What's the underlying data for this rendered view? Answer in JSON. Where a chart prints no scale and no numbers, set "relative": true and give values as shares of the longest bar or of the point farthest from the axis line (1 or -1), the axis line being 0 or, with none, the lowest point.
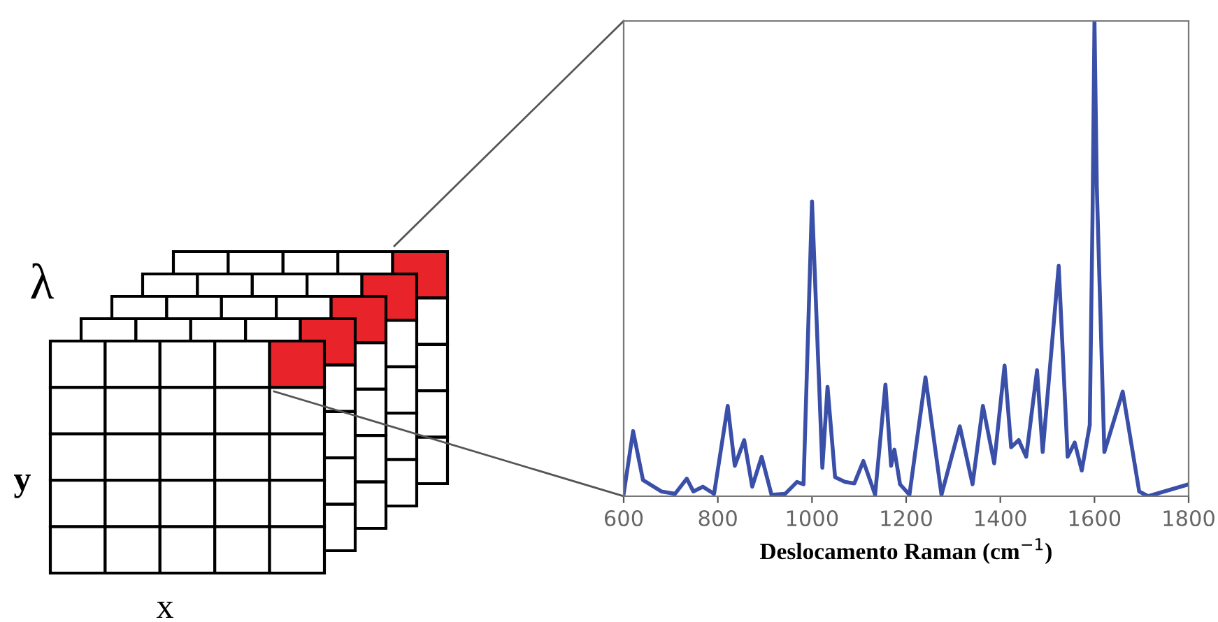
{
  "chart_data": {
    "type": "line",
    "relative": true,
    "xlabel": "Deslocamento Raman (cm$^{−1}$)",
    "x": [
      600,
      620,
      631,
      641,
      680,
      709,
      734,
      748,
      768,
      792,
      821,
      836,
      856,
      873,
      893,
      914,
      943,
      968,
      982,
      1000,
      1022,
      1033,
      1049,
      1070,
      1090,
      1109,
      1134,
      1156,
      1168,
      1175,
      1187,
      1207,
      1241,
      1275,
      1314,
      1341,
      1363,
      1387,
      1409,
      1423,
      1439,
      1455,
      1478,
      1490,
      1524,
      1543,
      1558,
      1573,
      1590,
      1596,
      1600,
      1605,
      1621,
      1660,
      1695,
      1714,
      1800
    ],
    "series": [
      {
        "color": "#3a4fa8",
        "values": [
          0.005,
          0.137,
          0.083,
          0.034,
          0.01,
          0.005,
          0.037,
          0.01,
          0.02,
          0.005,
          0.19,
          0.064,
          0.118,
          0.02,
          0.083,
          0.003,
          0.005,
          0.03,
          0.025,
          0.62,
          0.06,
          0.23,
          0.04,
          0.03,
          0.027,
          0.074,
          0.003,
          0.235,
          0.064,
          0.098,
          0.025,
          0.003,
          0.25,
          0.003,
          0.147,
          0.025,
          0.19,
          0.069,
          0.275,
          0.103,
          0.118,
          0.083,
          0.265,
          0.093,
          0.485,
          0.083,
          0.113,
          0.054,
          0.15,
          0.6,
          1.0,
          0.65,
          0.093,
          0.22,
          0.01,
          0.0,
          0.025
        ]
      }
    ],
    "xlim": [
      600,
      1800
    ],
    "xticks": [
      600,
      800,
      1000,
      1200,
      1400,
      1600,
      1800
    ],
    "grid": false,
    "marker": "none",
    "line_style": "solid",
    "annotations": [
      "λ",
      "y",
      "x"
    ]
  }
}
